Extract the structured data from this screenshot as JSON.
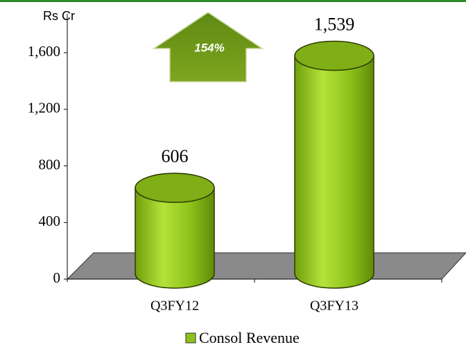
{
  "chart_data": {
    "type": "bar",
    "axis_unit": "Rs Cr",
    "annotation": "154%",
    "categories": [
      "Q3FY12",
      "Q3FY13"
    ],
    "series": [
      {
        "name": "Consol Revenue",
        "color": "#8cc21a",
        "values": [
          606,
          1539
        ],
        "value_labels": [
          "606",
          "1,539"
        ]
      }
    ],
    "ylim": [
      0,
      1850
    ],
    "yticks": [
      0,
      400,
      800,
      {
        "value": 1200,
        "label": "1,200"
      },
      {
        "value": 1600,
        "label": "1,600"
      }
    ],
    "legend": "bottom"
  }
}
